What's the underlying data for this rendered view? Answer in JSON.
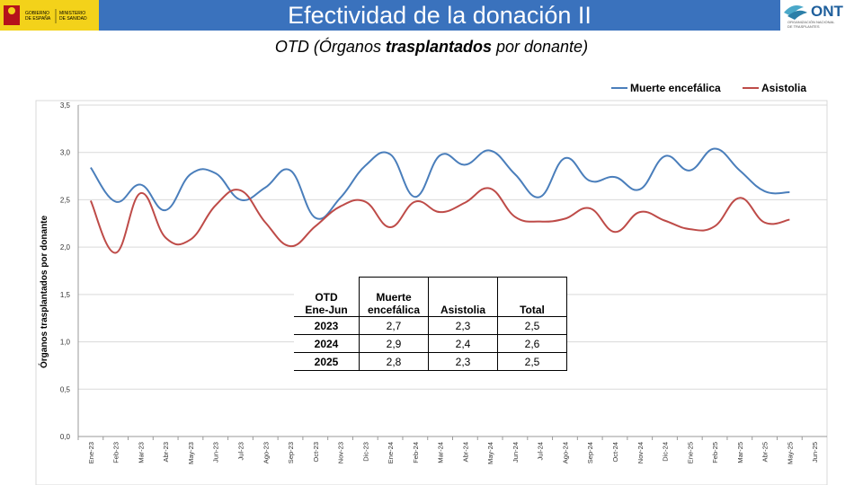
{
  "header": {
    "title": "Efectividad de la donación II",
    "gov_logo_line1": "GOBIERNO",
    "gov_logo_line2": "DE ESPAÑA",
    "gov_logo_line3": "MINISTERIO",
    "gov_logo_line4": "DE SANIDAD",
    "ont_logo_text": "ONT",
    "ont_logo_sub1": "ORGANIZACIÓN NACIONAL",
    "ont_logo_sub2": "DE TRASPLANTES",
    "colors": {
      "title_bar": "#3a72bd",
      "gov_logo": "#f3d21a"
    }
  },
  "subtitle": {
    "part1": "OTD (Órganos ",
    "bold": "trasplantados",
    "part2": " por donante)"
  },
  "chart_data": {
    "type": "line",
    "ylabel": "Órganos trasplantados por donante",
    "ylim": [
      0,
      3.5
    ],
    "yticks": [
      "0,0",
      "0,5",
      "1,0",
      "1,5",
      "2,0",
      "2,5",
      "3,0",
      "3,5"
    ],
    "legend_position": "top-right",
    "grid": true,
    "categories": [
      "Ene-23",
      "Feb-23",
      "Mar-23",
      "Abr-23",
      "May-23",
      "Jun-23",
      "Jul-23",
      "Ago-23",
      "Sep-23",
      "Oct-23",
      "Nov-23",
      "Dic-23",
      "Ene-24",
      "Feb-24",
      "Mar-24",
      "Abr-24",
      "May-24",
      "Jun-24",
      "Jul-24",
      "Ago-24",
      "Sep-24",
      "Oct-24",
      "Nov-24",
      "Dic-24",
      "Ene-25",
      "Feb-25",
      "Mar-25",
      "Abr-25",
      "May-25",
      "Jun-25"
    ],
    "series": [
      {
        "name": "Muerte encefálica",
        "color": "#4a7ebb",
        "values": [
          2.84,
          2.48,
          2.66,
          2.39,
          2.77,
          2.78,
          2.5,
          2.63,
          2.81,
          2.31,
          2.52,
          2.86,
          2.98,
          2.53,
          2.97,
          2.87,
          3.02,
          2.77,
          2.53,
          2.94,
          2.7,
          2.74,
          2.61,
          2.96,
          2.81,
          3.04,
          2.81,
          2.59,
          2.58,
          null
        ]
      },
      {
        "name": "Asistolia",
        "color": "#be4b48",
        "values": [
          2.49,
          1.94,
          2.57,
          2.1,
          2.08,
          2.44,
          2.6,
          2.26,
          2.01,
          2.22,
          2.43,
          2.48,
          2.21,
          2.48,
          2.37,
          2.47,
          2.62,
          2.32,
          2.27,
          2.3,
          2.41,
          2.16,
          2.37,
          2.28,
          2.19,
          2.22,
          2.52,
          2.26,
          2.29,
          null
        ]
      }
    ]
  },
  "table": {
    "header": {
      "c0_l1": "OTD",
      "c0_l2": "Ene-Jun",
      "c1_l1": "Muerte",
      "c1_l2": "encefálica",
      "c2": "Asistolia",
      "c3": "Total"
    },
    "rows": [
      {
        "year": "2023",
        "me": "2,7",
        "as": "2,3",
        "total": "2,5"
      },
      {
        "year": "2024",
        "me": "2,9",
        "as": "2,4",
        "total": "2,6"
      },
      {
        "year": "2025",
        "me": "2,8",
        "as": "2,3",
        "total": "2,5"
      }
    ]
  }
}
